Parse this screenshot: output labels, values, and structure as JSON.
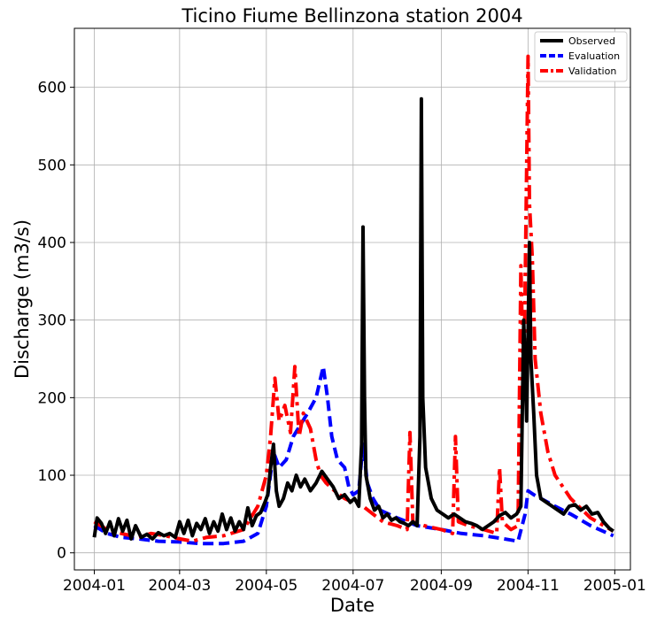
{
  "chart_data": {
    "type": "line",
    "title": "Ticino Fiume Bellinzona station 2004",
    "xlabel": "Date",
    "ylabel": "Discharge (m3/s)",
    "xlim": [
      "2003-12-18",
      "2005-01-12"
    ],
    "ylim": [
      -22,
      676
    ],
    "x_ticks": [
      "2004-01",
      "2004-03",
      "2004-05",
      "2004-07",
      "2004-09",
      "2004-11",
      "2005-01"
    ],
    "y_ticks": [
      0,
      100,
      200,
      300,
      400,
      500,
      600
    ],
    "grid": true,
    "legend_position": "top-right",
    "series": [
      {
        "name": "Observed",
        "color": "#000000",
        "style": "solid",
        "points": [
          [
            "2004-01-01",
            20
          ],
          [
            "2004-01-03",
            45
          ],
          [
            "2004-01-06",
            38
          ],
          [
            "2004-01-09",
            25
          ],
          [
            "2004-01-12",
            40
          ],
          [
            "2004-01-15",
            22
          ],
          [
            "2004-01-18",
            44
          ],
          [
            "2004-01-21",
            28
          ],
          [
            "2004-01-24",
            42
          ],
          [
            "2004-01-27",
            18
          ],
          [
            "2004-01-30",
            35
          ],
          [
            "2004-02-03",
            20
          ],
          [
            "2004-02-07",
            24
          ],
          [
            "2004-02-11",
            18
          ],
          [
            "2004-02-15",
            26
          ],
          [
            "2004-02-19",
            22
          ],
          [
            "2004-02-23",
            25
          ],
          [
            "2004-02-27",
            20
          ],
          [
            "2004-03-01",
            40
          ],
          [
            "2004-03-04",
            25
          ],
          [
            "2004-03-07",
            42
          ],
          [
            "2004-03-10",
            22
          ],
          [
            "2004-03-13",
            38
          ],
          [
            "2004-03-16",
            30
          ],
          [
            "2004-03-19",
            44
          ],
          [
            "2004-03-22",
            25
          ],
          [
            "2004-03-25",
            40
          ],
          [
            "2004-03-28",
            28
          ],
          [
            "2004-03-31",
            50
          ],
          [
            "2004-04-03",
            30
          ],
          [
            "2004-04-06",
            45
          ],
          [
            "2004-04-09",
            28
          ],
          [
            "2004-04-12",
            40
          ],
          [
            "2004-04-15",
            30
          ],
          [
            "2004-04-18",
            58
          ],
          [
            "2004-04-21",
            35
          ],
          [
            "2004-04-24",
            48
          ],
          [
            "2004-04-27",
            52
          ],
          [
            "2004-04-30",
            65
          ],
          [
            "2004-05-02",
            75
          ],
          [
            "2004-05-04",
            110
          ],
          [
            "2004-05-06",
            140
          ],
          [
            "2004-05-08",
            80
          ],
          [
            "2004-05-10",
            60
          ],
          [
            "2004-05-13",
            70
          ],
          [
            "2004-05-16",
            90
          ],
          [
            "2004-05-19",
            80
          ],
          [
            "2004-05-22",
            100
          ],
          [
            "2004-05-25",
            85
          ],
          [
            "2004-05-28",
            95
          ],
          [
            "2004-06-01",
            80
          ],
          [
            "2004-06-05",
            90
          ],
          [
            "2004-06-09",
            105
          ],
          [
            "2004-06-13",
            95
          ],
          [
            "2004-06-17",
            85
          ],
          [
            "2004-06-21",
            70
          ],
          [
            "2004-06-25",
            75
          ],
          [
            "2004-06-29",
            65
          ],
          [
            "2004-07-02",
            70
          ],
          [
            "2004-07-05",
            60
          ],
          [
            "2004-07-07",
            140
          ],
          [
            "2004-07-08",
            420
          ],
          [
            "2004-07-09",
            200
          ],
          [
            "2004-07-10",
            100
          ],
          [
            "2004-07-13",
            70
          ],
          [
            "2004-07-16",
            55
          ],
          [
            "2004-07-19",
            60
          ],
          [
            "2004-07-22",
            45
          ],
          [
            "2004-07-25",
            50
          ],
          [
            "2004-07-28",
            42
          ],
          [
            "2004-07-31",
            45
          ],
          [
            "2004-08-03",
            40
          ],
          [
            "2004-08-06",
            38
          ],
          [
            "2004-08-09",
            35
          ],
          [
            "2004-08-12",
            40
          ],
          [
            "2004-08-15",
            35
          ],
          [
            "2004-08-17",
            150
          ],
          [
            "2004-08-18",
            585
          ],
          [
            "2004-08-19",
            200
          ],
          [
            "2004-08-21",
            110
          ],
          [
            "2004-08-25",
            70
          ],
          [
            "2004-08-29",
            55
          ],
          [
            "2004-09-02",
            50
          ],
          [
            "2004-09-06",
            45
          ],
          [
            "2004-09-10",
            50
          ],
          [
            "2004-09-14",
            45
          ],
          [
            "2004-09-18",
            40
          ],
          [
            "2004-09-22",
            38
          ],
          [
            "2004-09-26",
            35
          ],
          [
            "2004-09-30",
            30
          ],
          [
            "2004-10-04",
            35
          ],
          [
            "2004-10-08",
            40
          ],
          [
            "2004-10-12",
            48
          ],
          [
            "2004-10-16",
            52
          ],
          [
            "2004-10-20",
            45
          ],
          [
            "2004-10-24",
            50
          ],
          [
            "2004-10-27",
            60
          ],
          [
            "2004-10-29",
            300
          ],
          [
            "2004-10-31",
            170
          ],
          [
            "2004-11-02",
            400
          ],
          [
            "2004-11-03",
            250
          ],
          [
            "2004-11-05",
            180
          ],
          [
            "2004-11-07",
            100
          ],
          [
            "2004-11-10",
            70
          ],
          [
            "2004-11-14",
            65
          ],
          [
            "2004-11-18",
            60
          ],
          [
            "2004-11-22",
            55
          ],
          [
            "2004-11-26",
            50
          ],
          [
            "2004-11-30",
            60
          ],
          [
            "2004-12-04",
            62
          ],
          [
            "2004-12-08",
            55
          ],
          [
            "2004-12-12",
            60
          ],
          [
            "2004-12-16",
            50
          ],
          [
            "2004-12-20",
            52
          ],
          [
            "2004-12-24",
            40
          ],
          [
            "2004-12-28",
            32
          ],
          [
            "2004-12-31",
            28
          ]
        ]
      },
      {
        "name": "Evaluation",
        "color": "#0000ff",
        "style": "dashed",
        "points": [
          [
            "2004-01-01",
            35
          ],
          [
            "2004-01-10",
            25
          ],
          [
            "2004-01-20",
            20
          ],
          [
            "2004-02-01",
            18
          ],
          [
            "2004-02-15",
            15
          ],
          [
            "2004-03-01",
            14
          ],
          [
            "2004-03-15",
            12
          ],
          [
            "2004-04-01",
            12
          ],
          [
            "2004-04-15",
            15
          ],
          [
            "2004-04-25",
            25
          ],
          [
            "2004-05-01",
            60
          ],
          [
            "2004-05-06",
            130
          ],
          [
            "2004-05-10",
            110
          ],
          [
            "2004-05-15",
            120
          ],
          [
            "2004-05-20",
            150
          ],
          [
            "2004-05-25",
            165
          ],
          [
            "2004-05-30",
            180
          ],
          [
            "2004-06-05",
            200
          ],
          [
            "2004-06-10",
            240
          ],
          [
            "2004-06-13",
            200
          ],
          [
            "2004-06-16",
            150
          ],
          [
            "2004-06-20",
            120
          ],
          [
            "2004-06-25",
            110
          ],
          [
            "2004-06-28",
            85
          ],
          [
            "2004-07-01",
            75
          ],
          [
            "2004-07-05",
            80
          ],
          [
            "2004-07-08",
            140
          ],
          [
            "2004-07-11",
            90
          ],
          [
            "2004-07-15",
            70
          ],
          [
            "2004-07-20",
            55
          ],
          [
            "2004-08-01",
            45
          ],
          [
            "2004-08-15",
            35
          ],
          [
            "2004-09-01",
            30
          ],
          [
            "2004-09-15",
            25
          ],
          [
            "2004-10-01",
            22
          ],
          [
            "2004-10-15",
            18
          ],
          [
            "2004-10-25",
            15
          ],
          [
            "2004-10-30",
            50
          ],
          [
            "2004-11-01",
            80
          ],
          [
            "2004-11-05",
            75
          ],
          [
            "2004-11-10",
            70
          ],
          [
            "2004-11-20",
            60
          ],
          [
            "2004-12-01",
            50
          ],
          [
            "2004-12-15",
            35
          ],
          [
            "2004-12-31",
            22
          ]
        ]
      },
      {
        "name": "Validation",
        "color": "#ff0000",
        "style": "dashdot",
        "points": [
          [
            "2004-01-01",
            40
          ],
          [
            "2004-01-10",
            30
          ],
          [
            "2004-01-20",
            25
          ],
          [
            "2004-02-01",
            20
          ],
          [
            "2004-02-10",
            25
          ],
          [
            "2004-02-20",
            22
          ],
          [
            "2004-03-01",
            18
          ],
          [
            "2004-03-10",
            15
          ],
          [
            "2004-03-20",
            20
          ],
          [
            "2004-04-01",
            22
          ],
          [
            "2004-04-15",
            30
          ],
          [
            "2004-04-25",
            60
          ],
          [
            "2004-05-01",
            100
          ],
          [
            "2004-05-04",
            150
          ],
          [
            "2004-05-07",
            225
          ],
          [
            "2004-05-10",
            170
          ],
          [
            "2004-05-14",
            190
          ],
          [
            "2004-05-18",
            155
          ],
          [
            "2004-05-21",
            240
          ],
          [
            "2004-05-24",
            150
          ],
          [
            "2004-05-27",
            180
          ],
          [
            "2004-06-01",
            160
          ],
          [
            "2004-06-05",
            120
          ],
          [
            "2004-06-08",
            100
          ],
          [
            "2004-06-12",
            90
          ],
          [
            "2004-06-18",
            80
          ],
          [
            "2004-06-25",
            70
          ],
          [
            "2004-07-01",
            65
          ],
          [
            "2004-07-08",
            60
          ],
          [
            "2004-07-15",
            50
          ],
          [
            "2004-07-22",
            40
          ],
          [
            "2004-08-01",
            35
          ],
          [
            "2004-08-08",
            30
          ],
          [
            "2004-08-10",
            155
          ],
          [
            "2004-08-12",
            40
          ],
          [
            "2004-08-20",
            35
          ],
          [
            "2004-09-01",
            30
          ],
          [
            "2004-09-09",
            25
          ],
          [
            "2004-09-11",
            150
          ],
          [
            "2004-09-13",
            40
          ],
          [
            "2004-09-20",
            35
          ],
          [
            "2004-10-01",
            30
          ],
          [
            "2004-10-10",
            25
          ],
          [
            "2004-10-12",
            110
          ],
          [
            "2004-10-14",
            40
          ],
          [
            "2004-10-20",
            30
          ],
          [
            "2004-10-25",
            35
          ],
          [
            "2004-10-27",
            370
          ],
          [
            "2004-10-29",
            200
          ],
          [
            "2004-11-01",
            640
          ],
          [
            "2004-11-02",
            450
          ],
          [
            "2004-11-04",
            380
          ],
          [
            "2004-11-06",
            250
          ],
          [
            "2004-11-10",
            180
          ],
          [
            "2004-11-15",
            130
          ],
          [
            "2004-11-20",
            100
          ],
          [
            "2004-12-01",
            70
          ],
          [
            "2004-12-15",
            45
          ],
          [
            "2004-12-31",
            28
          ]
        ]
      }
    ]
  }
}
